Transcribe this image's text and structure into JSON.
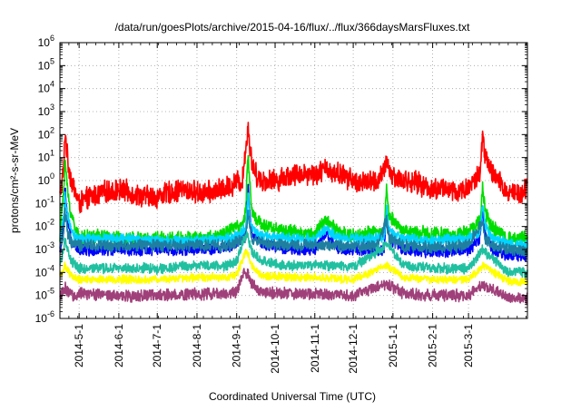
{
  "chart_data": {
    "type": "line",
    "title": "/data/run/goesPlots/archive/2015-04-16/flux/../flux/366daysMarsFluxes.txt",
    "xlabel": "Coordinated Universal Time (UTC)",
    "ylabel": "protons/cm²-s-sr-MeV",
    "yscale": "log",
    "ylim": [
      1e-06,
      1000000.0
    ],
    "xlim": [
      "2014-04-16",
      "2015-04-16"
    ],
    "grid": true,
    "legend": "none",
    "y_ticks": [
      {
        "exp": "-6",
        "value": 1e-06
      },
      {
        "exp": "-5",
        "value": 1e-05
      },
      {
        "exp": "-4",
        "value": 0.0001
      },
      {
        "exp": "-3",
        "value": 0.001
      },
      {
        "exp": "-2",
        "value": 0.01
      },
      {
        "exp": "-1",
        "value": 0.1
      },
      {
        "exp": "0",
        "value": 1.0
      },
      {
        "exp": "1",
        "value": 10.0
      },
      {
        "exp": "2",
        "value": 100.0
      },
      {
        "exp": "3",
        "value": 1000.0
      },
      {
        "exp": "4",
        "value": 10000.0
      },
      {
        "exp": "5",
        "value": 100000.0
      },
      {
        "exp": "6",
        "value": 1000000.0
      }
    ],
    "x_ticks": [
      {
        "label": "2014-5-1",
        "date": "2014-05-01"
      },
      {
        "label": "2014-6-1",
        "date": "2014-06-01"
      },
      {
        "label": "2014-7-1",
        "date": "2014-07-01"
      },
      {
        "label": "2014-8-1",
        "date": "2014-08-01"
      },
      {
        "label": "2014-9-1",
        "date": "2014-09-01"
      },
      {
        "label": "2014-10-1",
        "date": "2014-10-01"
      },
      {
        "label": "2014-11-1",
        "date": "2014-11-01"
      },
      {
        "label": "2014-12-1",
        "date": "2014-12-01"
      },
      {
        "label": "2015-1-1",
        "date": "2015-01-01"
      },
      {
        "label": "2015-2-1",
        "date": "2015-02-01"
      },
      {
        "label": "2015-3-1",
        "date": "2015-03-01"
      }
    ],
    "series": [
      {
        "color": "#ff0000",
        "x": [
          "2014-04-16",
          "2014-04-19",
          "2014-04-20",
          "2014-04-22",
          "2014-04-25",
          "2014-05-01",
          "2014-05-10",
          "2014-05-20",
          "2014-06-01",
          "2014-06-10",
          "2014-06-20",
          "2014-07-01",
          "2014-07-10",
          "2014-07-20",
          "2014-08-01",
          "2014-08-10",
          "2014-08-20",
          "2014-08-28",
          "2014-09-01",
          "2014-09-05",
          "2014-09-08",
          "2014-09-10",
          "2014-09-11",
          "2014-09-13",
          "2014-09-16",
          "2014-09-20",
          "2014-10-01",
          "2014-10-10",
          "2014-10-20",
          "2014-11-01",
          "2014-11-10",
          "2014-11-20",
          "2014-12-01",
          "2014-12-10",
          "2014-12-20",
          "2014-12-25",
          "2014-12-27",
          "2014-12-29",
          "2015-01-01",
          "2015-01-10",
          "2015-01-20",
          "2015-02-01",
          "2015-02-10",
          "2015-02-20",
          "2015-03-01",
          "2015-03-10",
          "2015-03-12",
          "2015-03-14",
          "2015-03-18",
          "2015-03-25",
          "2015-04-01",
          "2015-04-10",
          "2015-04-16"
        ],
        "values": [
          0.2,
          3,
          150,
          8,
          1,
          0.1,
          0.2,
          0.3,
          0.4,
          0.3,
          0.2,
          0.2,
          0.3,
          0.4,
          0.3,
          0.3,
          0.4,
          0.6,
          1,
          0.8,
          20,
          300,
          40,
          5,
          2,
          1,
          1,
          1.5,
          2,
          2,
          3,
          2,
          1,
          0.8,
          1,
          2,
          8,
          3,
          1.5,
          1,
          0.8,
          0.4,
          0.5,
          0.3,
          0.5,
          2,
          80,
          10,
          3,
          0.8,
          0.3,
          0.3,
          0.6
        ]
      },
      {
        "color": "#00dd00",
        "x": [
          "2014-04-16",
          "2014-04-19",
          "2014-04-20",
          "2014-04-22",
          "2014-04-25",
          "2014-05-01",
          "2014-05-15",
          "2014-06-01",
          "2014-07-01",
          "2014-08-01",
          "2014-08-20",
          "2014-09-01",
          "2014-09-05",
          "2014-09-08",
          "2014-09-10",
          "2014-09-11",
          "2014-09-13",
          "2014-09-16",
          "2014-09-25",
          "2014-10-10",
          "2014-10-25",
          "2014-11-01",
          "2014-11-10",
          "2014-11-20",
          "2014-12-01",
          "2014-12-15",
          "2014-12-25",
          "2014-12-27",
          "2014-12-29",
          "2015-01-10",
          "2015-02-01",
          "2015-02-20",
          "2015-03-01",
          "2015-03-10",
          "2015-03-12",
          "2015-03-14",
          "2015-03-18",
          "2015-04-01",
          "2015-04-16"
        ],
        "values": [
          0.004,
          0.5,
          10,
          0.3,
          0.03,
          0.003,
          0.004,
          0.003,
          0.003,
          0.003,
          0.004,
          0.01,
          0.01,
          0.05,
          20,
          1,
          0.05,
          0.02,
          0.01,
          0.006,
          0.005,
          0.005,
          0.02,
          0.005,
          0.004,
          0.005,
          0.005,
          0.5,
          0.03,
          0.006,
          0.005,
          0.004,
          0.006,
          0.02,
          0.5,
          0.05,
          0.01,
          0.003,
          0.003
        ]
      },
      {
        "color": "#0000ff",
        "x": [
          "2014-04-16",
          "2014-04-19",
          "2014-04-20",
          "2014-04-22",
          "2014-04-25",
          "2014-05-01",
          "2014-06-01",
          "2014-07-01",
          "2014-08-01",
          "2014-08-25",
          "2014-09-01",
          "2014-09-08",
          "2014-09-10",
          "2014-09-11",
          "2014-09-13",
          "2014-09-20",
          "2014-10-10",
          "2014-11-01",
          "2014-11-10",
          "2014-11-20",
          "2014-12-20",
          "2014-12-25",
          "2014-12-27",
          "2014-12-29",
          "2015-01-10",
          "2015-02-01",
          "2015-03-01",
          "2015-03-10",
          "2015-03-12",
          "2015-03-14",
          "2015-03-20",
          "2015-04-01",
          "2015-04-16"
        ],
        "values": [
          0.0008,
          0.01,
          0.5,
          0.02,
          0.002,
          0.001,
          0.001,
          0.001,
          0.001,
          0.0012,
          0.002,
          0.005,
          0.5,
          0.05,
          0.005,
          0.002,
          0.001,
          0.001,
          0.005,
          0.001,
          0.001,
          0.001,
          0.05,
          0.003,
          0.001,
          0.0008,
          0.001,
          0.003,
          0.05,
          0.005,
          0.001,
          0.0006,
          0.0005
        ]
      },
      {
        "color": "#00d5ff",
        "x": [
          "2014-04-16",
          "2014-04-19",
          "2014-04-20",
          "2014-04-22",
          "2014-04-25",
          "2014-05-01",
          "2014-06-01",
          "2014-07-01",
          "2014-08-01",
          "2014-08-25",
          "2014-09-01",
          "2014-09-08",
          "2014-09-10",
          "2014-09-11",
          "2014-09-13",
          "2014-09-20",
          "2014-10-10",
          "2014-11-01",
          "2014-11-10",
          "2014-11-20",
          "2014-12-20",
          "2014-12-25",
          "2014-12-27",
          "2014-12-29",
          "2015-01-10",
          "2015-02-01",
          "2015-03-01",
          "2015-03-10",
          "2015-03-12",
          "2015-03-14",
          "2015-03-20",
          "2015-04-01",
          "2015-04-16"
        ],
        "values": [
          0.003,
          0.02,
          0.3,
          0.03,
          0.005,
          0.003,
          0.003,
          0.0025,
          0.0025,
          0.003,
          0.004,
          0.008,
          0.3,
          0.03,
          0.008,
          0.004,
          0.003,
          0.003,
          0.008,
          0.003,
          0.003,
          0.003,
          0.08,
          0.006,
          0.003,
          0.0025,
          0.003,
          0.006,
          0.08,
          0.01,
          0.003,
          0.002,
          0.0015
        ]
      },
      {
        "color": "#1f7fa0",
        "x": [
          "2014-04-16",
          "2014-04-19",
          "2014-04-20",
          "2014-04-22",
          "2014-04-25",
          "2014-05-01",
          "2014-06-01",
          "2014-07-01",
          "2014-08-01",
          "2014-08-25",
          "2014-09-01",
          "2014-09-08",
          "2014-09-10",
          "2014-09-11",
          "2014-09-13",
          "2014-09-20",
          "2014-10-10",
          "2014-11-01",
          "2014-11-20",
          "2014-12-20",
          "2014-12-27",
          "2014-12-29",
          "2015-01-10",
          "2015-02-01",
          "2015-03-01",
          "2015-03-12",
          "2015-03-14",
          "2015-03-20",
          "2015-04-01",
          "2015-04-16"
        ],
        "values": [
          0.0015,
          0.005,
          0.05,
          0.005,
          0.002,
          0.0015,
          0.0015,
          0.0015,
          0.0015,
          0.0015,
          0.002,
          0.003,
          0.05,
          0.01,
          0.003,
          0.002,
          0.0015,
          0.0015,
          0.0015,
          0.0015,
          0.02,
          0.003,
          0.0015,
          0.0012,
          0.0015,
          0.02,
          0.003,
          0.0015,
          0.001,
          0.0009
        ]
      },
      {
        "color": "#20c0a0",
        "x": [
          "2014-04-16",
          "2014-04-20",
          "2014-04-25",
          "2014-05-01",
          "2014-06-01",
          "2014-07-01",
          "2014-08-01",
          "2014-08-25",
          "2014-09-01",
          "2014-09-05",
          "2014-09-08",
          "2014-09-10",
          "2014-09-13",
          "2014-09-20",
          "2014-10-10",
          "2014-11-01",
          "2014-12-01",
          "2014-12-27",
          "2015-01-10",
          "2015-02-01",
          "2015-03-01",
          "2015-03-12",
          "2015-04-01",
          "2015-04-16"
        ],
        "values": [
          0.0002,
          0.002,
          0.0003,
          0.00015,
          0.00015,
          0.00015,
          0.0002,
          0.0002,
          0.0003,
          0.0015,
          0.005,
          0.003,
          0.0008,
          0.0003,
          0.0002,
          0.0002,
          0.00018,
          0.0015,
          0.0002,
          0.00015,
          0.00015,
          0.001,
          0.0001,
          0.0001
        ]
      },
      {
        "color": "#ffff00",
        "x": [
          "2014-04-16",
          "2014-04-20",
          "2014-04-25",
          "2014-05-01",
          "2014-06-01",
          "2014-07-01",
          "2014-08-01",
          "2014-08-25",
          "2014-09-01",
          "2014-09-05",
          "2014-09-08",
          "2014-09-10",
          "2014-09-13",
          "2014-09-20",
          "2014-10-10",
          "2014-11-01",
          "2014-12-01",
          "2014-12-27",
          "2015-01-10",
          "2015-02-01",
          "2015-03-01",
          "2015-03-12",
          "2015-04-01",
          "2015-04-16"
        ],
        "values": [
          6e-05,
          0.0002,
          7e-05,
          5e-05,
          5e-05,
          5e-05,
          6e-05,
          6e-05,
          8e-05,
          0.0003,
          0.0008,
          0.0006,
          0.0002,
          8e-05,
          6e-05,
          6e-05,
          5e-05,
          0.0002,
          6e-05,
          5e-05,
          5e-05,
          0.0002,
          4e-05,
          4e-05
        ]
      },
      {
        "color": "#a0407a",
        "x": [
          "2014-04-16",
          "2014-04-20",
          "2014-04-25",
          "2014-05-01",
          "2014-06-01",
          "2014-07-01",
          "2014-08-01",
          "2014-08-25",
          "2014-09-01",
          "2014-09-05",
          "2014-09-08",
          "2014-09-10",
          "2014-09-13",
          "2014-09-20",
          "2014-10-10",
          "2014-11-01",
          "2014-12-01",
          "2014-12-27",
          "2015-01-10",
          "2015-02-01",
          "2015-03-01",
          "2015-03-12",
          "2015-04-01",
          "2015-04-16"
        ],
        "values": [
          1e-05,
          2e-05,
          1e-05,
          1.2e-05,
          1e-05,
          1e-05,
          1.2e-05,
          1.2e-05,
          1.5e-05,
          5e-05,
          0.0001,
          8e-05,
          3e-05,
          1.5e-05,
          1.2e-05,
          1.2e-05,
          1e-05,
          3e-05,
          1.2e-05,
          1e-05,
          1e-05,
          3e-05,
          8e-06,
          8e-06
        ]
      }
    ]
  }
}
